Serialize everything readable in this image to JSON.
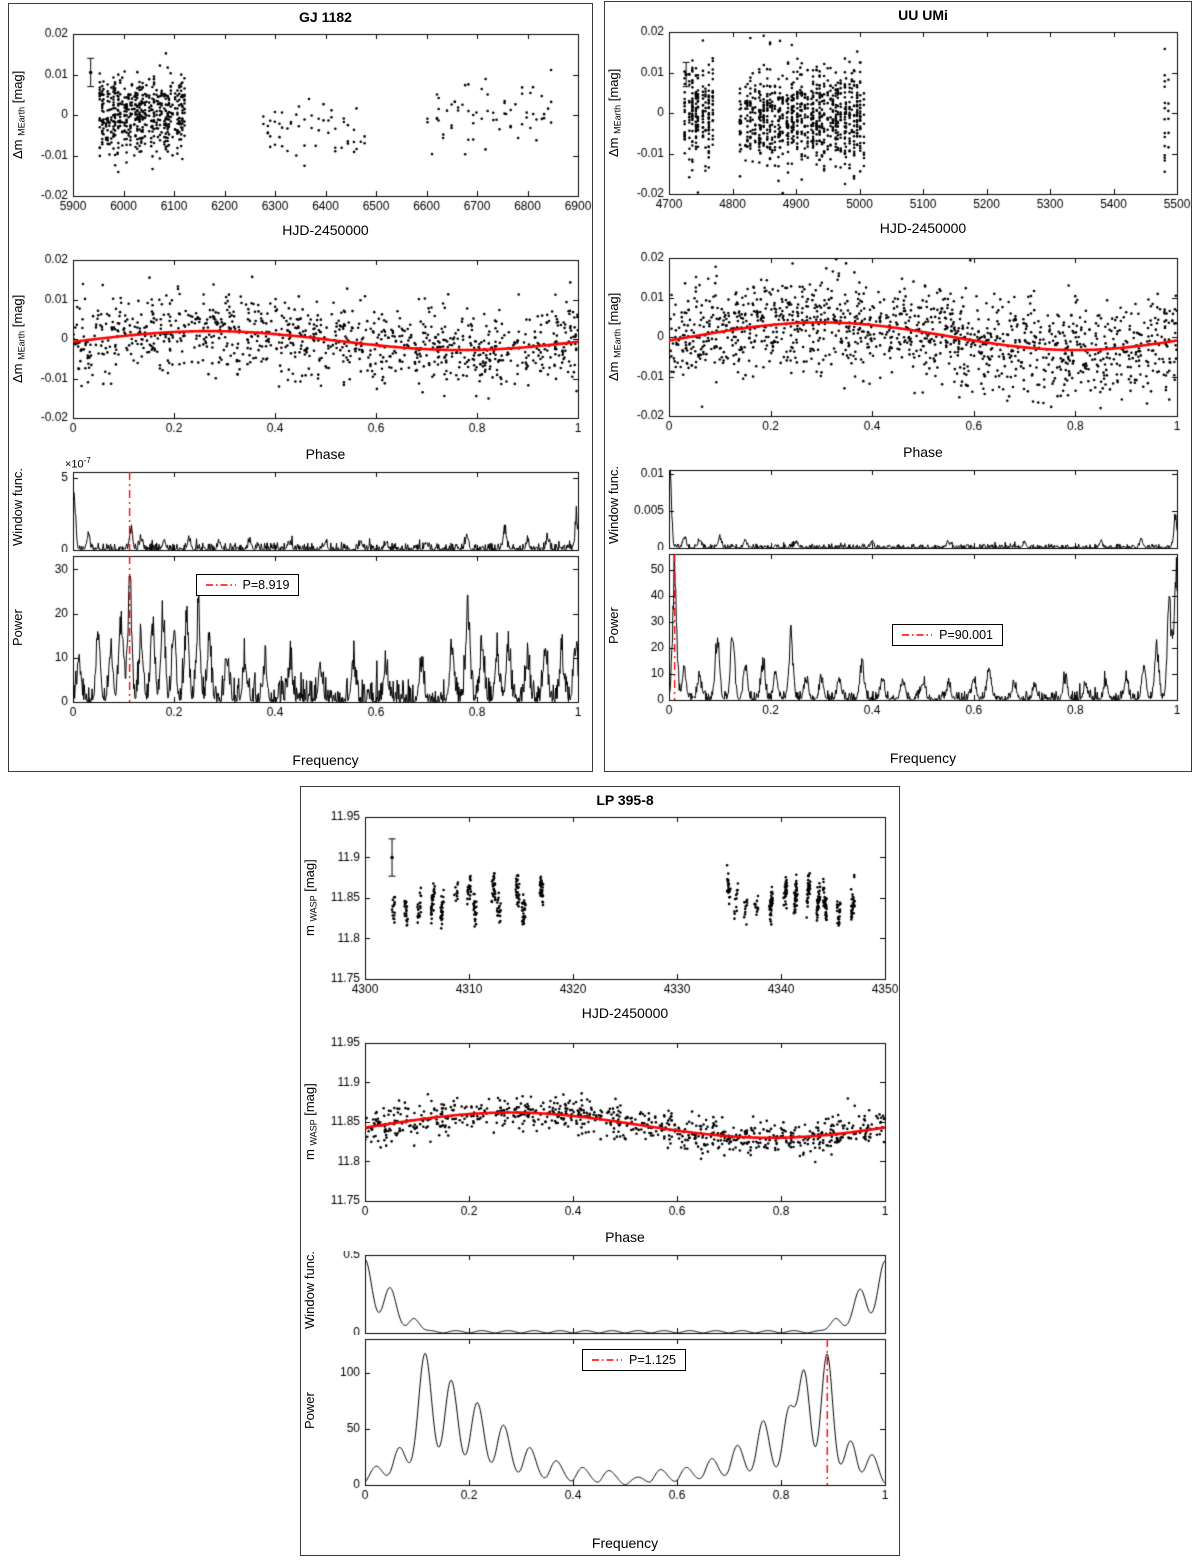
{
  "chart_data": [
    {
      "id": "gj-1182",
      "title": "GJ 1182",
      "type": "scatter+line",
      "mag_label": {
        "prefix": "Δm ",
        "sub": "MEarth",
        "suffix": " [mag]"
      },
      "timeseries": {
        "xlabel": "HJD-2450000",
        "xlim": [
          5900,
          6900
        ],
        "xticks": [
          5900,
          6000,
          6100,
          6200,
          6300,
          6400,
          6500,
          6600,
          6700,
          6800,
          6900
        ],
        "ylim": [
          -0.02,
          0.02
        ],
        "yticks": [
          -0.02,
          -0.01,
          0,
          0.01,
          0.02
        ],
        "errorbar": {
          "x": 5935,
          "y": 0.0105,
          "err": 0.0035
        },
        "clusters": [
          {
            "x0": 5952,
            "x1": 6122,
            "nights": 46,
            "per_night": 13,
            "mean": 0.0005,
            "sigma": 0.005
          },
          {
            "x0": 6272,
            "x1": 6482,
            "nights": 26,
            "per_night": 2,
            "mean": -0.004,
            "sigma": 0.0038
          },
          {
            "x0": 6600,
            "x1": 6852,
            "nights": 34,
            "per_night": 2,
            "mean": 0.0015,
            "sigma": 0.0042
          }
        ],
        "seed": 101
      },
      "phase": {
        "xlabel": "Phase",
        "xlim": [
          0,
          1
        ],
        "xticks": [
          0,
          0.2,
          0.4,
          0.6,
          0.8,
          1
        ],
        "ylim": [
          -0.02,
          0.02
        ],
        "yticks": [
          -0.02,
          -0.01,
          0,
          0.01,
          0.02
        ],
        "n": 1000,
        "sigma": 0.005,
        "seed": 102,
        "fit": {
          "mean": -0.0004,
          "amplitude": 0.0024,
          "peak_phase": 0.27,
          "color": "#ff0000"
        }
      },
      "window": {
        "ylabel": "Window func.",
        "scale_base": "×10",
        "scale_exp": "-7",
        "ylim": [
          0,
          5.4
        ],
        "yticks": [
          0,
          5
        ],
        "floor": 0.5,
        "seed": 103,
        "peak_width": 0.003,
        "peaks": [
          [
            0.002,
            4.6
          ],
          [
            0.03,
            0.9
          ],
          [
            0.115,
            1.6
          ],
          [
            0.135,
            0.9
          ],
          [
            0.18,
            0.7
          ],
          [
            0.23,
            0.85
          ],
          [
            0.29,
            0.5
          ],
          [
            0.35,
            0.55
          ],
          [
            0.43,
            0.5
          ],
          [
            0.5,
            0.6
          ],
          [
            0.57,
            0.5
          ],
          [
            0.62,
            0.55
          ],
          [
            0.7,
            0.5
          ],
          [
            0.78,
            0.95
          ],
          [
            0.855,
            1.5
          ],
          [
            0.9,
            0.6
          ],
          [
            0.94,
            0.7
          ],
          [
            0.997,
            2.3
          ]
        ],
        "marker_freq": 0.1121
      },
      "power": {
        "ylabel": "Power",
        "xlabel": "Frequency",
        "legend_label": "P=8.919",
        "xlim": [
          0,
          1
        ],
        "xticks": [
          0,
          0.2,
          0.4,
          0.6,
          0.8,
          1
        ],
        "ylim": [
          0,
          33
        ],
        "yticks": [
          0,
          10,
          20,
          30
        ],
        "floor": 5.5,
        "seed": 104,
        "peak_width": 0.004,
        "peaks": [
          [
            0.012,
            9
          ],
          [
            0.05,
            15
          ],
          [
            0.075,
            12
          ],
          [
            0.095,
            21
          ],
          [
            0.1121,
            29
          ],
          [
            0.135,
            15
          ],
          [
            0.158,
            20
          ],
          [
            0.178,
            21
          ],
          [
            0.2,
            15
          ],
          [
            0.225,
            19
          ],
          [
            0.248,
            20
          ],
          [
            0.27,
            12
          ],
          [
            0.305,
            10
          ],
          [
            0.34,
            9
          ],
          [
            0.38,
            8
          ],
          [
            0.43,
            9
          ],
          [
            0.49,
            8
          ],
          [
            0.555,
            9
          ],
          [
            0.62,
            8
          ],
          [
            0.69,
            9
          ],
          [
            0.75,
            14
          ],
          [
            0.782,
            22
          ],
          [
            0.81,
            12
          ],
          [
            0.84,
            11
          ],
          [
            0.862,
            13
          ],
          [
            0.9,
            10
          ],
          [
            0.935,
            12
          ],
          [
            0.968,
            11
          ],
          [
            0.995,
            12
          ]
        ],
        "marker_freq": 0.1121,
        "marker_color": "#ff0000",
        "period": 8.919
      }
    },
    {
      "id": "uu-umi",
      "title": "UU UMi",
      "type": "scatter+line",
      "mag_label": {
        "prefix": "Δm ",
        "sub": "MEarth",
        "suffix": " [mag]"
      },
      "timeseries": {
        "xlabel": "HJD-2450000",
        "xlim": [
          4700,
          5500
        ],
        "xticks": [
          4700,
          4800,
          4900,
          5000,
          5100,
          5200,
          5300,
          5400,
          5500
        ],
        "ylim": [
          -0.02,
          0.02
        ],
        "yticks": [
          -0.02,
          -0.01,
          0,
          0.01,
          0.02
        ],
        "errorbar": {
          "x": 4727,
          "y": 0.0095,
          "err": 0.003
        },
        "clusters": [
          {
            "x0": 4722,
            "x1": 4772,
            "nights": 9,
            "per_night": 24,
            "mean": 0,
            "sigma": 0.0062
          },
          {
            "x0": 4808,
            "x1": 5008,
            "nights": 46,
            "per_night": 20,
            "mean": -0.0008,
            "sigma": 0.006
          },
          {
            "x0": 5479,
            "x1": 5491,
            "nights": 2,
            "per_night": 12,
            "mean": 0,
            "sigma": 0.007
          }
        ],
        "seed": 201
      },
      "phase": {
        "xlabel": "Phase",
        "xlim": [
          0,
          1
        ],
        "xticks": [
          0,
          0.2,
          0.4,
          0.6,
          0.8,
          1
        ],
        "ylim": [
          -0.02,
          0.02
        ],
        "yticks": [
          -0.02,
          -0.01,
          0,
          0.01,
          0.02
        ],
        "n": 1350,
        "sigma": 0.006,
        "seed": 202,
        "fit": {
          "mean": 0.0002,
          "amplitude": 0.0035,
          "peak_phase": 0.3,
          "color": "#ff0000"
        }
      },
      "window": {
        "ylabel": "Window func.",
        "ylim": [
          0,
          0.0105
        ],
        "yticks": [
          0,
          0.005,
          0.01
        ],
        "floor": 0.00055,
        "seed": 203,
        "peak_width": 0.003,
        "peaks": [
          [
            0.002,
            0.0098
          ],
          [
            0.03,
            0.0015
          ],
          [
            0.06,
            0.0012
          ],
          [
            0.1,
            0.0013
          ],
          [
            0.15,
            0.001
          ],
          [
            0.25,
            0.0008
          ],
          [
            0.4,
            0.0007
          ],
          [
            0.55,
            0.0008
          ],
          [
            0.7,
            0.0007
          ],
          [
            0.85,
            0.0009
          ],
          [
            0.93,
            0.0012
          ],
          [
            0.997,
            0.0046
          ]
        ]
      },
      "power": {
        "ylabel": "Power",
        "xlabel": "Frequency",
        "legend_label": "P=90.001",
        "xlim": [
          0,
          1
        ],
        "xticks": [
          0,
          0.2,
          0.4,
          0.6,
          0.8,
          1
        ],
        "ylim": [
          0,
          56
        ],
        "yticks": [
          0,
          10,
          20,
          30,
          40,
          50
        ],
        "floor": 3.5,
        "seed": 204,
        "peak_width": 0.004,
        "peaks": [
          [
            0.0111,
            52
          ],
          [
            0.03,
            12
          ],
          [
            0.06,
            9
          ],
          [
            0.095,
            25
          ],
          [
            0.125,
            24
          ],
          [
            0.15,
            13
          ],
          [
            0.185,
            14
          ],
          [
            0.21,
            10
          ],
          [
            0.24,
            26
          ],
          [
            0.27,
            9
          ],
          [
            0.3,
            9
          ],
          [
            0.335,
            8
          ],
          [
            0.38,
            15
          ],
          [
            0.42,
            7
          ],
          [
            0.46,
            6
          ],
          [
            0.5,
            7
          ],
          [
            0.55,
            6
          ],
          [
            0.6,
            8
          ],
          [
            0.63,
            13
          ],
          [
            0.68,
            6
          ],
          [
            0.72,
            6
          ],
          [
            0.78,
            8
          ],
          [
            0.82,
            6
          ],
          [
            0.86,
            7
          ],
          [
            0.9,
            9
          ],
          [
            0.935,
            13
          ],
          [
            0.96,
            20
          ],
          [
            0.985,
            40
          ],
          [
            0.998,
            48
          ]
        ],
        "marker_freq": 0.0111,
        "marker_color": "#ff0000",
        "period": 90.001
      }
    },
    {
      "id": "lp-395-8",
      "title": "LP 395-8",
      "type": "scatter+line",
      "mag_label": {
        "prefix": "m ",
        "sub": "WASP",
        "suffix": " [mag]"
      },
      "timeseries": {
        "xlabel": "HJD-2450000",
        "xlim": [
          4300,
          4350
        ],
        "xticks": [
          4300,
          4310,
          4320,
          4330,
          4340,
          4350
        ],
        "ylim": [
          11.75,
          11.95
        ],
        "yticks": [
          11.75,
          11.8,
          11.85,
          11.9,
          11.95
        ],
        "errorbar": {
          "x": 4302.6,
          "y": 11.9,
          "err": 0.023
        },
        "signal": {
          "mean": 11.848,
          "amplitude": 0.016,
          "period": 1.125
        },
        "clip": [
          11.787,
          11.921
        ],
        "clusters": [
          {
            "x0": 4302,
            "x1": 4317,
            "nights": 13,
            "per_night": 22,
            "sigma": 0.009
          },
          {
            "x0": 4334,
            "x1": 4347,
            "nights": 12,
            "per_night": 28,
            "sigma": 0.009
          }
        ],
        "seed": 301
      },
      "phase": {
        "xlabel": "Phase",
        "xlim": [
          0,
          1
        ],
        "xticks": [
          0,
          0.2,
          0.4,
          0.6,
          0.8,
          1
        ],
        "ylim": [
          11.75,
          11.95
        ],
        "yticks": [
          11.75,
          11.8,
          11.85,
          11.9,
          11.95
        ],
        "n": 820,
        "sigma": 0.011,
        "seed": 302,
        "fit": {
          "mean": 11.846,
          "amplitude": 0.016,
          "peak_phase": 0.28,
          "color": "#ff0000"
        }
      },
      "window": {
        "ylabel": "Window func.",
        "ylim": [
          0,
          0.5
        ],
        "yticks": [
          0,
          0.5
        ],
        "floor": 0,
        "smooth": true,
        "seed": 303,
        "base_wave": {
          "amp": 0.015,
          "n": 20
        },
        "peaks": [
          [
            0,
            0.47,
            0.013
          ],
          [
            0.048,
            0.29,
            0.012
          ],
          [
            0.095,
            0.09,
            0.01
          ],
          [
            0.905,
            0.09,
            0.01
          ],
          [
            0.952,
            0.28,
            0.012
          ],
          [
            1,
            0.46,
            0.013
          ]
        ]
      },
      "power": {
        "ylabel": "Power",
        "xlabel": "Frequency",
        "legend_label": "P=1.125",
        "xlim": [
          0,
          1
        ],
        "xticks": [
          0,
          0.2,
          0.4,
          0.6,
          0.8,
          1
        ],
        "ylim": [
          0,
          130
        ],
        "yticks": [
          0,
          50,
          100
        ],
        "floor": 0,
        "smooth": true,
        "seed": 304,
        "base_wave": {
          "amp": 7,
          "n": 20
        },
        "peaks": [
          [
            0.02,
            10,
            0.012
          ],
          [
            0.065,
            28,
            0.012
          ],
          [
            0.115,
            112,
            0.013
          ],
          [
            0.165,
            88,
            0.013
          ],
          [
            0.215,
            68,
            0.013
          ],
          [
            0.265,
            48,
            0.013
          ],
          [
            0.315,
            28,
            0.012
          ],
          [
            0.365,
            16,
            0.012
          ],
          [
            0.415,
            10,
            0.011
          ],
          [
            0.465,
            7,
            0.011
          ],
          [
            0.565,
            8,
            0.011
          ],
          [
            0.615,
            10,
            0.011
          ],
          [
            0.665,
            18,
            0.012
          ],
          [
            0.715,
            30,
            0.012
          ],
          [
            0.765,
            52,
            0.012
          ],
          [
            0.815,
            62,
            0.012
          ],
          [
            0.845,
            98,
            0.011
          ],
          [
            0.889,
            113,
            0.011
          ],
          [
            0.935,
            34,
            0.011
          ],
          [
            0.975,
            20,
            0.011
          ]
        ],
        "marker_freq": 0.889,
        "marker_color": "#ff0000",
        "period": 1.125
      }
    }
  ]
}
